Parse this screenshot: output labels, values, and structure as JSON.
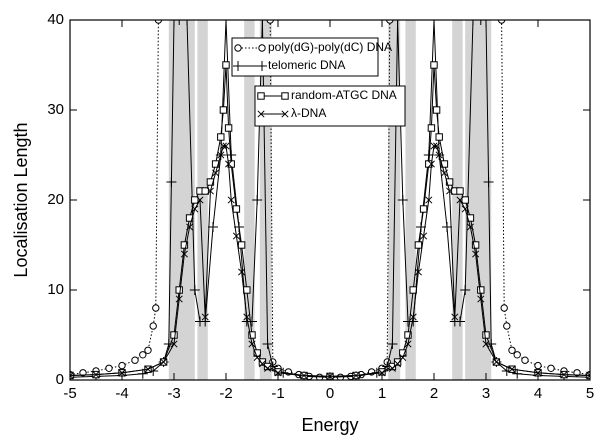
{
  "chart_data": {
    "type": "line",
    "x_label": "Energy",
    "y_label": "Localisation Length",
    "xlim": [
      -5,
      5
    ],
    "xticks": [
      -5,
      -4,
      -3,
      -2,
      -1,
      0,
      1,
      2,
      3,
      4,
      5
    ],
    "ylim": [
      0,
      40
    ],
    "yticks": [
      0,
      10,
      20,
      30,
      40
    ],
    "shaded_color": "#d4d4d4",
    "shaded_regions": [
      [
        -3.1,
        -2.6
      ],
      [
        -2.55,
        -2.35
      ],
      [
        -1.65,
        -1.45
      ],
      [
        -1.35,
        -1.12
      ],
      [
        1.12,
        1.35
      ],
      [
        1.45,
        1.65
      ],
      [
        2.35,
        2.55
      ],
      [
        2.6,
        3.1
      ]
    ],
    "series": [
      {
        "name": "poly(dG)-poly(dC) DNA",
        "color": "#000000",
        "marker": "circle",
        "dash": "dotted",
        "x": [
          -5,
          -4.75,
          -4.5,
          -4.25,
          -4,
          -3.75,
          -3.6,
          -3.5,
          -3.4,
          -3.35,
          -3.3,
          -2.2,
          -1.15,
          -1.1,
          -1,
          -0.8,
          -0.6,
          -0.4,
          -0.2,
          0,
          0.2,
          0.4,
          0.6,
          0.8,
          1,
          1.1,
          1.15,
          2.2,
          3.3,
          3.35,
          3.4,
          3.5,
          3.6,
          3.75,
          4,
          4.25,
          4.5,
          4.75,
          5
        ],
        "values": [
          0.6,
          0.8,
          1.0,
          1.3,
          1.6,
          2.2,
          2.8,
          3.3,
          6,
          8,
          40,
          null,
          40,
          2,
          1.3,
          0.9,
          0.6,
          0.4,
          0.3,
          0.3,
          0.3,
          0.4,
          0.6,
          0.9,
          1.3,
          2,
          40,
          null,
          40,
          8,
          6,
          3.3,
          2.8,
          2.2,
          1.6,
          1.3,
          1.0,
          0.8,
          0.6
        ]
      },
      {
        "name": "telomeric DNA",
        "color": "#000000",
        "marker": "plus",
        "dash": "solid",
        "x": [
          -5,
          -4.5,
          -4,
          -3.6,
          -3.4,
          -3.2,
          -3.1,
          -3.05,
          -3.0,
          -2.9,
          -2.75,
          -2.6,
          -2.5,
          -2.4,
          -2.25,
          -2.1,
          -2.0,
          -1.9,
          -1.75,
          -1.6,
          -1.5,
          -1.4,
          -1.3,
          -1.2,
          -1.1,
          -0.9,
          -0.5,
          0,
          0.5,
          0.9,
          1.1,
          1.2,
          1.3,
          1.4,
          1.5,
          1.6,
          1.75,
          1.9,
          2.0,
          2.1,
          2.25,
          2.4,
          2.5,
          2.6,
          2.75,
          2.9,
          3.0,
          3.05,
          3.1,
          3.2,
          3.4,
          3.6,
          4,
          4.5,
          5
        ],
        "values": [
          0.3,
          0.4,
          0.5,
          0.7,
          1,
          2,
          4,
          22,
          40,
          40,
          40,
          10,
          6.5,
          6.5,
          17,
          25,
          40,
          25,
          17,
          6.5,
          6.5,
          20,
          40,
          4,
          1.5,
          0.8,
          0.4,
          0.3,
          0.4,
          0.8,
          1.5,
          4,
          40,
          20,
          6.5,
          6.5,
          17,
          25,
          40,
          25,
          17,
          6.5,
          6.5,
          10,
          40,
          40,
          40,
          22,
          4,
          2,
          1,
          0.7,
          0.5,
          0.4,
          0.3
        ]
      },
      {
        "name": "random-ATGC DNA",
        "color": "#000000",
        "marker": "square",
        "dash": "solid",
        "x": [
          -5,
          -4.5,
          -4,
          -3.5,
          -3.2,
          -3.0,
          -2.9,
          -2.8,
          -2.7,
          -2.6,
          -2.5,
          -2.4,
          -2.3,
          -2.2,
          -2.1,
          -2.05,
          -2.0,
          -1.95,
          -1.9,
          -1.8,
          -1.7,
          -1.6,
          -1.5,
          -1.4,
          -1.3,
          -1.2,
          -1.0,
          -0.5,
          0,
          0.5,
          1.0,
          1.2,
          1.3,
          1.4,
          1.5,
          1.6,
          1.7,
          1.8,
          1.9,
          1.95,
          2.0,
          2.05,
          2.1,
          2.2,
          2.3,
          2.4,
          2.5,
          2.6,
          2.7,
          2.8,
          2.9,
          3.0,
          3.2,
          3.5,
          4,
          4.5,
          5
        ],
        "values": [
          0.5,
          0.6,
          0.8,
          1.2,
          2,
          5,
          10,
          15,
          18,
          20,
          21,
          21,
          22,
          24,
          27,
          30,
          35,
          28,
          24,
          19,
          15,
          10,
          5,
          3,
          2,
          1.5,
          0.9,
          0.5,
          0.4,
          0.5,
          0.9,
          1.5,
          2,
          3,
          5,
          10,
          15,
          19,
          24,
          28,
          35,
          30,
          27,
          24,
          22,
          21,
          21,
          20,
          18,
          15,
          10,
          5,
          2,
          1.2,
          0.8,
          0.6,
          0.5
        ]
      },
      {
        "name": "λ-DNA",
        "color": "#000000",
        "marker": "cross",
        "dash": "solid",
        "x": [
          -5,
          -4.5,
          -4,
          -3.5,
          -3.2,
          -3.0,
          -2.9,
          -2.8,
          -2.7,
          -2.6,
          -2.5,
          -2.4,
          -2.3,
          -2.2,
          -2.1,
          -2.05,
          -2.0,
          -1.95,
          -1.9,
          -1.8,
          -1.7,
          -1.6,
          -1.5,
          -1.4,
          -1.3,
          -1.2,
          -1.0,
          -0.5,
          0,
          0.5,
          1.0,
          1.2,
          1.3,
          1.4,
          1.5,
          1.6,
          1.7,
          1.8,
          1.9,
          1.95,
          2.0,
          2.05,
          2.1,
          2.2,
          2.3,
          2.4,
          2.5,
          2.6,
          2.7,
          2.8,
          2.9,
          3.0,
          3.2,
          3.5,
          4,
          4.5,
          5
        ],
        "values": [
          0.5,
          0.6,
          0.8,
          1.2,
          2,
          4,
          9,
          14,
          17,
          19,
          20,
          7,
          21,
          23,
          25,
          26,
          26,
          24,
          20,
          16,
          12,
          7,
          4,
          2.5,
          1.8,
          1.3,
          0.8,
          0.5,
          0.4,
          0.5,
          0.8,
          1.3,
          1.8,
          2.5,
          4,
          7,
          12,
          16,
          20,
          24,
          26,
          26,
          25,
          23,
          21,
          7,
          20,
          19,
          17,
          14,
          9,
          4,
          2,
          1.2,
          0.8,
          0.6,
          0.5
        ]
      }
    ]
  }
}
